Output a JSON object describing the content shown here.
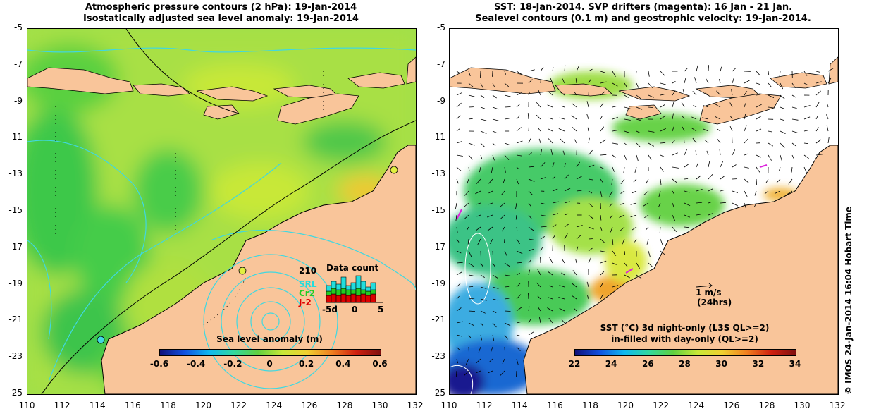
{
  "left_panel": {
    "title_line1": "Atmospheric pressure contours (2 hPa): 19-Jan-2014",
    "title_line2": "Isostatically adjusted sea level anomaly: 19-Jan-2014",
    "colorbar": {
      "title": "Sea level anomaly (m)",
      "ticks": [
        "-0.6",
        "-0.4",
        "-0.2",
        "0",
        "0.2",
        "0.4",
        "0.6"
      ],
      "range": [
        -0.6,
        0.6
      ]
    },
    "data_count": {
      "title": "Data count",
      "total": "210",
      "missions": [
        "SRL",
        "Cr2",
        "J-2"
      ],
      "mission_colors": [
        "#22dddd",
        "#22cc22",
        "#dd0000"
      ],
      "axis_ticks": [
        "-5d",
        "0",
        "5"
      ]
    }
  },
  "right_panel": {
    "title_line1": "SST: 18-Jan-2014. SVP drifters (magenta): 16 Jan - 21 Jan.",
    "title_line2": "Sealevel contours (0.1 m) and geostrophic velocity: 19-Jan-2014.",
    "velocity_legend": {
      "speed": "1 m/s",
      "duration": "(24hrs)"
    },
    "colorbar": {
      "title_line1": "SST (°C)  3d night-only (L3S QL>=2)",
      "title_line2": "in-filled with day-only (QL>=2)",
      "ticks": [
        "22",
        "24",
        "26",
        "28",
        "30",
        "32",
        "34"
      ],
      "range": [
        22,
        34
      ]
    }
  },
  "axes": {
    "lat_ticks": [
      "-5",
      "-7",
      "-9",
      "-11",
      "-13",
      "-15",
      "-17",
      "-19",
      "-21",
      "-23",
      "-25"
    ],
    "lon_ticks": [
      "110",
      "112",
      "114",
      "116",
      "118",
      "120",
      "122",
      "124",
      "126",
      "128",
      "130",
      "132"
    ],
    "lon_range": [
      110,
      132
    ],
    "lat_range": [
      -5,
      -25
    ]
  },
  "credit": "© IMOS 24-Jan-2014 16:04 Hobart Time",
  "colors": {
    "land": "#f9c59a",
    "sla_base": "#9fe04a",
    "contour": "#40d8e0"
  }
}
